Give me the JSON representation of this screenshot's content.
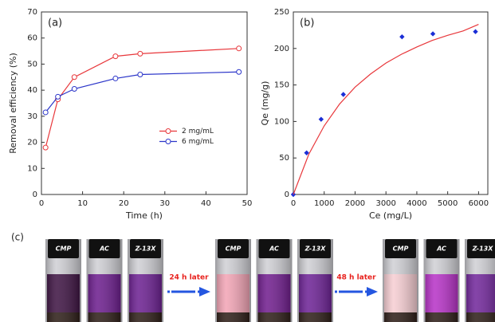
{
  "chart_data": [
    {
      "type": "line",
      "label": "(a)",
      "x_label": "Time (h)",
      "y_label": "Removal efficiency (%)",
      "xlim": [
        0,
        50
      ],
      "xticks": [
        0,
        10,
        20,
        30,
        40,
        50
      ],
      "ylim": [
        0,
        70
      ],
      "yticks": [
        0,
        10,
        20,
        30,
        40,
        50,
        60,
        70
      ],
      "legend": "center-right",
      "series": [
        {
          "name": "2 mg/mL",
          "color": "#e8373b",
          "marker": "open-circle",
          "line": true,
          "x": [
            1,
            4,
            8,
            18,
            24,
            48
          ],
          "values": [
            18,
            36.5,
            45,
            53,
            54,
            56
          ]
        },
        {
          "name": "6 mg/mL",
          "color": "#2b35c9",
          "marker": "open-circle",
          "line": true,
          "x": [
            1,
            4,
            8,
            18,
            24,
            48
          ],
          "values": [
            31.5,
            37.5,
            40.5,
            44.5,
            46,
            47
          ]
        }
      ]
    },
    {
      "type": "scatter",
      "label": "(b)",
      "x_label": "Ce (mg/L)",
      "y_label": "Qe (mg/g)",
      "xlim": [
        0,
        6300
      ],
      "xticks": [
        0,
        1000,
        2000,
        3000,
        4000,
        5000,
        6000
      ],
      "ylim": [
        0,
        250
      ],
      "yticks": [
        0,
        50,
        100,
        150,
        200,
        250
      ],
      "series": [
        {
          "color": "#1a2ed6",
          "marker": "filled-diamond",
          "line": false,
          "x": [
            0,
            430,
            900,
            1620,
            3520,
            4520,
            5900
          ],
          "values": [
            0,
            57,
            103,
            137,
            216,
            220,
            223
          ]
        },
        {
          "color": "#e8373b",
          "marker": "none",
          "line": true,
          "x": [
            0,
            500,
            1000,
            1500,
            2000,
            2500,
            3000,
            3500,
            4000,
            4500,
            5000,
            5500,
            6000
          ],
          "values": [
            0,
            55,
            94,
            124,
            147,
            165,
            180,
            192,
            202,
            211,
            218,
            224,
            233
          ]
        }
      ]
    }
  ],
  "panel_c": {
    "label": "(c)",
    "groups": [
      [
        "CMP",
        "AC",
        "Z-13X"
      ],
      [
        "CMP",
        "AC",
        "Z-13X"
      ],
      [
        "CMP",
        "AC",
        "Z-13X"
      ]
    ],
    "arrows": [
      "24 h later",
      "48 h later"
    ]
  }
}
